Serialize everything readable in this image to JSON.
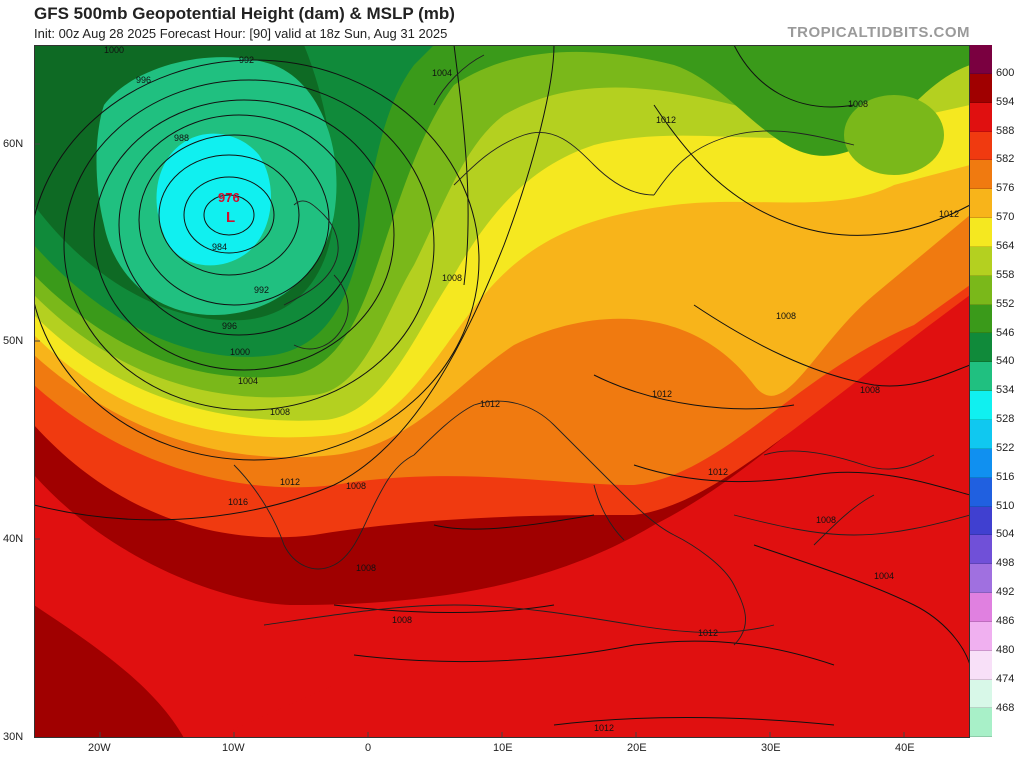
{
  "header": {
    "title": "GFS 500mb Geopotential Height (dam) & MSLP (mb)",
    "subtitle": "Init: 00z Aug 28 2025    Forecast Hour: [90]    valid at 18z Sun, Aug 31 2025",
    "credit": "TROPICALTIDBITS.COM"
  },
  "map": {
    "low_center": {
      "pressure": "976",
      "symbol": "L"
    },
    "isobar_labels": [
      "1000",
      "996",
      "992",
      "988",
      "984",
      "984",
      "992",
      "996",
      "1000",
      "1004",
      "1008",
      "1016",
      "1012",
      "1008",
      "1004",
      "1008",
      "1012",
      "1008",
      "1012",
      "1008",
      "1012",
      "1012",
      "1008",
      "1012",
      "1008",
      "1008",
      "1004",
      "1012",
      "1008",
      "1012",
      "1008",
      "1012"
    ],
    "lat_labels": [
      "60N",
      "50N",
      "40N",
      "30N"
    ],
    "lon_labels": [
      "20W",
      "10W",
      "0",
      "10E",
      "20E",
      "30E",
      "40E"
    ]
  },
  "colorbar": {
    "labels": [
      "600",
      "594",
      "588",
      "582",
      "576",
      "570",
      "564",
      "558",
      "552",
      "546",
      "540",
      "534",
      "528",
      "522",
      "516",
      "510",
      "504",
      "498",
      "492",
      "486",
      "480",
      "474",
      "468"
    ],
    "colors": [
      "#7a0040",
      "#a00000",
      "#e01010",
      "#f03a10",
      "#f07a10",
      "#f8b41a",
      "#f5e820",
      "#b4d020",
      "#7ab81a",
      "#3a9a1a",
      "#108a3a",
      "#20c080",
      "#10f0f0",
      "#10c8f0",
      "#1090f0",
      "#2060e0",
      "#4040d0",
      "#7050d8",
      "#a070e0",
      "#e080e0",
      "#f0b0f0",
      "#f8e0f8",
      "#d8f8e8",
      "#a8f0c8"
    ]
  },
  "colors": {
    "deep_green": "#0e6a24",
    "green": "#2a9a28",
    "light_green": "#7ab81a",
    "yellow_green": "#b4d020",
    "yellow": "#f5e820",
    "gold": "#f8b41a",
    "orange": "#f07a10",
    "red_orange": "#f03a10",
    "red": "#e01010",
    "dark_red": "#a00000",
    "teal": "#20c080",
    "cyan": "#10f0f0"
  }
}
